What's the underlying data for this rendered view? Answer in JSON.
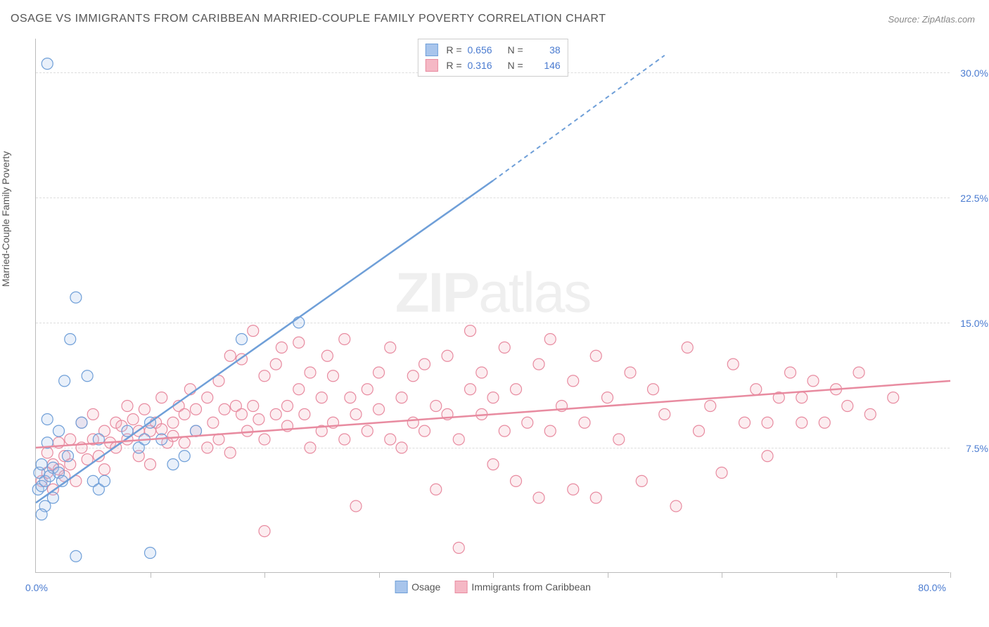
{
  "title": "OSAGE VS IMMIGRANTS FROM CARIBBEAN MARRIED-COUPLE FAMILY POVERTY CORRELATION CHART",
  "source": "Source: ZipAtlas.com",
  "y_axis_label": "Married-Couple Family Poverty",
  "watermark": {
    "part1": "ZIP",
    "part2": "atlas"
  },
  "chart": {
    "type": "scatter",
    "xlim": [
      0,
      80
    ],
    "ylim": [
      0,
      32
    ],
    "x_tick_step": 10,
    "x_origin_label": "0.0%",
    "x_max_label": "80.0%",
    "y_ticks": [
      7.5,
      15.0,
      22.5,
      30.0
    ],
    "y_tick_labels": [
      "7.5%",
      "15.0%",
      "22.5%",
      "30.0%"
    ],
    "grid_color": "#dddddd",
    "background_color": "#ffffff",
    "marker_radius": 8
  },
  "series": [
    {
      "name": "Osage",
      "legend_label": "Osage",
      "color_fill": "#a8c5ec",
      "color_stroke": "#6f9fd8",
      "R": "0.656",
      "N": "38",
      "regression": {
        "x1": 0,
        "y1": 4.2,
        "x2_solid": 40,
        "y2_solid": 23.5,
        "x2": 55,
        "y2": 31
      },
      "points": [
        [
          0.2,
          5.0
        ],
        [
          0.3,
          6.0
        ],
        [
          0.5,
          5.2
        ],
        [
          0.5,
          6.5
        ],
        [
          0.8,
          5.5
        ],
        [
          0.8,
          4.0
        ],
        [
          1.0,
          7.8
        ],
        [
          1.0,
          9.2
        ],
        [
          1.2,
          5.8
        ],
        [
          1.5,
          6.3
        ],
        [
          1.5,
          4.5
        ],
        [
          2.0,
          8.5
        ],
        [
          2.0,
          6.0
        ],
        [
          2.3,
          5.5
        ],
        [
          2.5,
          11.5
        ],
        [
          2.8,
          7.0
        ],
        [
          3.0,
          14.0
        ],
        [
          3.5,
          16.5
        ],
        [
          4.0,
          9.0
        ],
        [
          4.5,
          11.8
        ],
        [
          5.0,
          5.5
        ],
        [
          5.5,
          8.0
        ],
        [
          5.5,
          5.0
        ],
        [
          6.0,
          5.5
        ],
        [
          3.5,
          1.0
        ],
        [
          10.0,
          1.2
        ],
        [
          8.0,
          8.5
        ],
        [
          9.0,
          7.5
        ],
        [
          9.5,
          8.0
        ],
        [
          10.0,
          9.0
        ],
        [
          11.0,
          8.0
        ],
        [
          12.0,
          6.5
        ],
        [
          13.0,
          7.0
        ],
        [
          14.0,
          8.5
        ],
        [
          18.0,
          14.0
        ],
        [
          23.0,
          15.0
        ],
        [
          0.5,
          3.5
        ],
        [
          1.0,
          30.5
        ]
      ]
    },
    {
      "name": "Immigrants from Caribbean",
      "legend_label": "Immigrants from Caribbean",
      "color_fill": "#f5b8c5",
      "color_stroke": "#e88ba0",
      "R": "0.316",
      "N": "146",
      "regression": {
        "x1": 0,
        "y1": 7.5,
        "x2_solid": 80,
        "y2_solid": 11.5,
        "x2": 80,
        "y2": 11.5
      },
      "points": [
        [
          0.5,
          5.5
        ],
        [
          1,
          6.0
        ],
        [
          1,
          7.2
        ],
        [
          1.5,
          6.5
        ],
        [
          1.5,
          5.0
        ],
        [
          2,
          7.8
        ],
        [
          2,
          6.2
        ],
        [
          2.5,
          7.0
        ],
        [
          2.5,
          5.8
        ],
        [
          3,
          6.5
        ],
        [
          3,
          8.0
        ],
        [
          3.5,
          5.5
        ],
        [
          4,
          7.5
        ],
        [
          4,
          9.0
        ],
        [
          4.5,
          6.8
        ],
        [
          5,
          8.0
        ],
        [
          5,
          9.5
        ],
        [
          5.5,
          7.0
        ],
        [
          6,
          8.5
        ],
        [
          6,
          6.2
        ],
        [
          6.5,
          7.8
        ],
        [
          7,
          9.0
        ],
        [
          7,
          7.5
        ],
        [
          7.5,
          8.8
        ],
        [
          8,
          8.0
        ],
        [
          8,
          10.0
        ],
        [
          8.5,
          9.2
        ],
        [
          9,
          8.5
        ],
        [
          9,
          7.0
        ],
        [
          9.5,
          9.8
        ],
        [
          10,
          8.5
        ],
        [
          10,
          6.5
        ],
        [
          10.5,
          9.0
        ],
        [
          11,
          8.6
        ],
        [
          11,
          10.5
        ],
        [
          11.5,
          7.8
        ],
        [
          12,
          9.0
        ],
        [
          12,
          8.2
        ],
        [
          12.5,
          10.0
        ],
        [
          13,
          7.8
        ],
        [
          13,
          9.5
        ],
        [
          13.5,
          11.0
        ],
        [
          14,
          8.5
        ],
        [
          14,
          9.8
        ],
        [
          15,
          7.5
        ],
        [
          15,
          10.5
        ],
        [
          15.5,
          9.0
        ],
        [
          16,
          11.5
        ],
        [
          16,
          8.0
        ],
        [
          16.5,
          9.8
        ],
        [
          17,
          13.0
        ],
        [
          17,
          7.2
        ],
        [
          17.5,
          10.0
        ],
        [
          18,
          9.5
        ],
        [
          18,
          12.8
        ],
        [
          18.5,
          8.5
        ],
        [
          19,
          14.5
        ],
        [
          19,
          10.0
        ],
        [
          19.5,
          9.2
        ],
        [
          20,
          11.8
        ],
        [
          20,
          8.0
        ],
        [
          20,
          2.5
        ],
        [
          21,
          12.5
        ],
        [
          21,
          9.5
        ],
        [
          21.5,
          13.5
        ],
        [
          22,
          10.0
        ],
        [
          22,
          8.8
        ],
        [
          23,
          11.0
        ],
        [
          23,
          13.8
        ],
        [
          23.5,
          9.5
        ],
        [
          24,
          12.0
        ],
        [
          24,
          7.5
        ],
        [
          25,
          10.5
        ],
        [
          25,
          8.5
        ],
        [
          25.5,
          13.0
        ],
        [
          26,
          9.0
        ],
        [
          26,
          11.8
        ],
        [
          27,
          8.0
        ],
        [
          27,
          14.0
        ],
        [
          27.5,
          10.5
        ],
        [
          28,
          9.5
        ],
        [
          28,
          4.0
        ],
        [
          29,
          11.0
        ],
        [
          29,
          8.5
        ],
        [
          30,
          12.0
        ],
        [
          30,
          9.8
        ],
        [
          31,
          8.0
        ],
        [
          31,
          13.5
        ],
        [
          32,
          10.5
        ],
        [
          32,
          7.5
        ],
        [
          33,
          11.8
        ],
        [
          33,
          9.0
        ],
        [
          34,
          8.5
        ],
        [
          34,
          12.5
        ],
        [
          35,
          10.0
        ],
        [
          35,
          5.0
        ],
        [
          36,
          9.5
        ],
        [
          36,
          13.0
        ],
        [
          37,
          8.0
        ],
        [
          37,
          1.5
        ],
        [
          38,
          11.0
        ],
        [
          38,
          14.5
        ],
        [
          39,
          9.5
        ],
        [
          39,
          12.0
        ],
        [
          40,
          6.5
        ],
        [
          40,
          10.5
        ],
        [
          41,
          8.5
        ],
        [
          41,
          13.5
        ],
        [
          42,
          5.5
        ],
        [
          42,
          11.0
        ],
        [
          43,
          9.0
        ],
        [
          44,
          4.5
        ],
        [
          44,
          12.5
        ],
        [
          45,
          8.5
        ],
        [
          45,
          14.0
        ],
        [
          46,
          10.0
        ],
        [
          47,
          5.0
        ],
        [
          47,
          11.5
        ],
        [
          48,
          9.0
        ],
        [
          49,
          13.0
        ],
        [
          49,
          4.5
        ],
        [
          50,
          10.5
        ],
        [
          51,
          8.0
        ],
        [
          52,
          12.0
        ],
        [
          53,
          5.5
        ],
        [
          54,
          11.0
        ],
        [
          55,
          9.5
        ],
        [
          56,
          4.0
        ],
        [
          57,
          13.5
        ],
        [
          58,
          8.5
        ],
        [
          59,
          10.0
        ],
        [
          60,
          6.0
        ],
        [
          61,
          12.5
        ],
        [
          62,
          9.0
        ],
        [
          63,
          11.0
        ],
        [
          64,
          9.0
        ],
        [
          64,
          7.0
        ],
        [
          65,
          10.5
        ],
        [
          66,
          12.0
        ],
        [
          67,
          9.0
        ],
        [
          67,
          10.5
        ],
        [
          68,
          11.5
        ],
        [
          69,
          9.0
        ],
        [
          70,
          11.0
        ],
        [
          71,
          10.0
        ],
        [
          72,
          12.0
        ],
        [
          73,
          9.5
        ],
        [
          75,
          10.5
        ]
      ]
    }
  ],
  "legend_top_labels": {
    "R": "R =",
    "N": "N ="
  },
  "legend_bottom": [
    {
      "swatch_fill": "#a8c5ec",
      "swatch_stroke": "#6f9fd8",
      "label": "Osage"
    },
    {
      "swatch_fill": "#f5b8c5",
      "swatch_stroke": "#e88ba0",
      "label": "Immigrants from Caribbean"
    }
  ]
}
